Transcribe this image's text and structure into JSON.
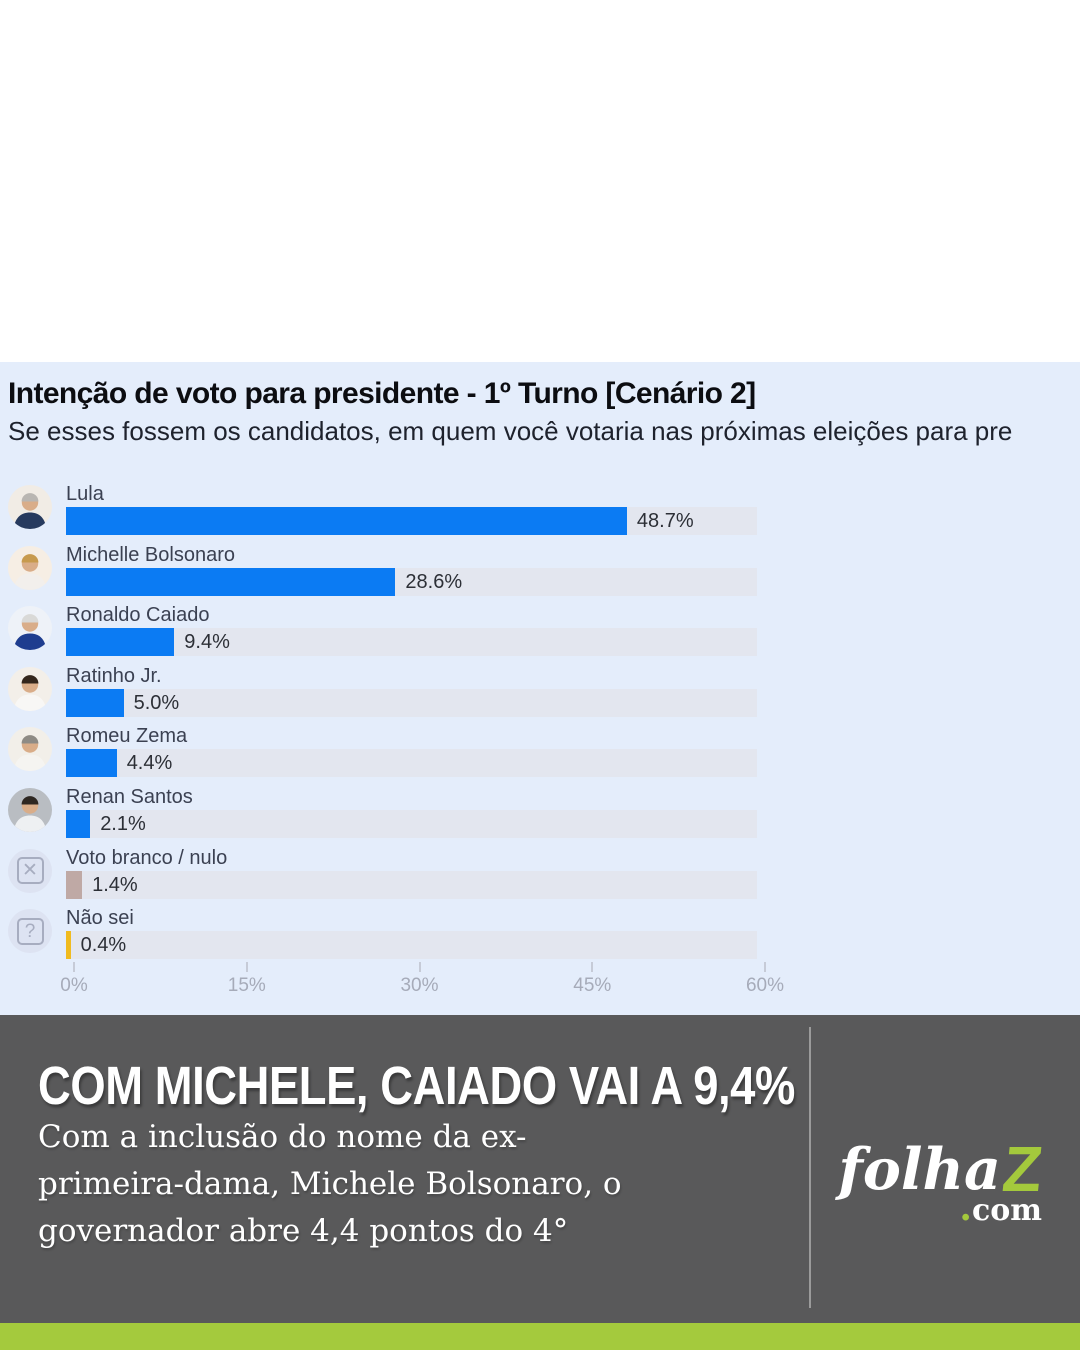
{
  "colors": {
    "panel_bg": "#e4edfb",
    "track": "#e3e6ef",
    "bar_blue": "#0b7bf3",
    "footer_bg": "#59595a",
    "divider": "#9b9b9b",
    "green": "#a4c93c",
    "bottom_strip": "#a4ca3d"
  },
  "chart": {
    "title": "Intenção de voto para presidente - 1º Turno [Cenário 2]",
    "subtitle": "Se esses fossem os candidatos, em quem você votaria nas próximas eleições para pre"
  },
  "chart_data": {
    "type": "bar",
    "orientation": "horizontal",
    "title": "Intenção de voto para presidente - 1º Turno [Cenário 2]",
    "subtitle": "Se esses fossem os candidatos, em quem você votaria nas próximas eleições para pre",
    "xlim": [
      0,
      60
    ],
    "x_ticks": [
      "0%",
      "15%",
      "30%",
      "45%",
      "60%"
    ],
    "grid": false,
    "legend": false,
    "categories": [
      "Lula",
      "Michelle Bolsonaro",
      "Ronaldo Caiado",
      "Ratinho Jr.",
      "Romeu Zema",
      "Renan Santos",
      "Voto branco / nulo",
      "Não sei"
    ],
    "values": [
      48.7,
      28.6,
      9.4,
      5.0,
      4.4,
      2.1,
      1.4,
      0.4
    ],
    "value_labels": [
      "48.7%",
      "28.6%",
      "9.4%",
      "5.0%",
      "4.4%",
      "2.1%",
      "1.4%",
      "0.4%"
    ],
    "bar_colors": [
      "#0b7bf3",
      "#0b7bf3",
      "#0b7bf3",
      "#0b7bf3",
      "#0b7bf3",
      "#0b7bf3",
      "#bfa9a5",
      "#f0bb1f"
    ],
    "icons": [
      {
        "type": "photo",
        "name": "lula-avatar",
        "bg": "#f1ece5",
        "hair": "#b9b6b2",
        "shirt": "#273a5e"
      },
      {
        "type": "photo",
        "name": "michelle-bolsonaro-avatar",
        "bg": "#f6eee4",
        "hair": "#c79a4e",
        "shirt": "#f2efec"
      },
      {
        "type": "photo",
        "name": "ronaldo-caiado-avatar",
        "bg": "#eef2f8",
        "hair": "#d9d9d7",
        "shirt": "#1e3d8f"
      },
      {
        "type": "photo",
        "name": "ratinho-jr-avatar",
        "bg": "#f3efe9",
        "hair": "#33261c",
        "shirt": "#f8f7f5"
      },
      {
        "type": "photo",
        "name": "romeu-zema-avatar",
        "bg": "#f2efe9",
        "hair": "#8e8b85",
        "shirt": "#f5f4f1"
      },
      {
        "type": "photo",
        "name": "renan-santos-avatar",
        "bg": "#b9bdc2",
        "hair": "#2e2721",
        "shirt": "#eef0f2"
      },
      {
        "type": "glyph",
        "name": "blank-vote-icon",
        "glyph": "✕",
        "circle_bg": "#dde3f2",
        "glyph_color": "#a7adc0"
      },
      {
        "type": "glyph",
        "name": "question-icon",
        "glyph": "?",
        "circle_bg": "#dde3f2",
        "glyph_color": "#a7adc0"
      }
    ]
  },
  "footer": {
    "headline": "COM MICHELE, CAIADO VAI A 9,4%",
    "body_lines": [
      "Com a inclusão do nome da ex-",
      "primeira-dama, Michele Bolsonaro, o",
      "governador abre 4,4 pontos do 4°"
    ],
    "logo": {
      "word": "folha",
      "z": "Z",
      "com_dot": ".",
      "com": "com"
    }
  }
}
